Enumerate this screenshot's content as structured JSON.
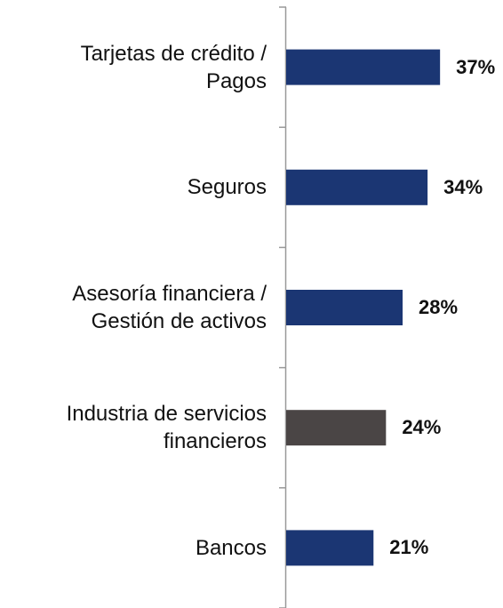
{
  "chart_data": {
    "type": "bar",
    "orientation": "horizontal",
    "categories": [
      "Tarjetas de crédito /\nPagos",
      "Seguros",
      "Asesoría financiera /\nGestión de activos",
      "Industria de servicios\nfinancieros",
      "Bancos"
    ],
    "values": [
      37,
      34,
      28,
      24,
      21
    ],
    "value_labels": [
      "37%",
      "34%",
      "28%",
      "24%",
      "21%"
    ],
    "colors": [
      "#1b3673",
      "#1b3673",
      "#1b3673",
      "#4a4545",
      "#1b3673"
    ]
  }
}
